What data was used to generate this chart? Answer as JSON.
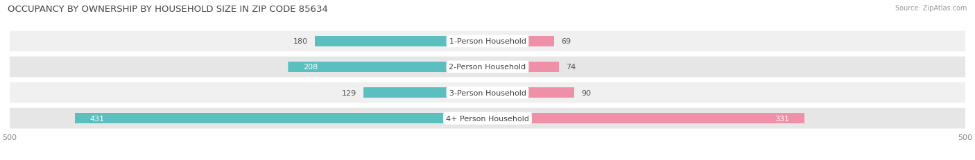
{
  "title": "OCCUPANCY BY OWNERSHIP BY HOUSEHOLD SIZE IN ZIP CODE 85634",
  "source": "Source: ZipAtlas.com",
  "categories": [
    "1-Person Household",
    "2-Person Household",
    "3-Person Household",
    "4+ Person Household"
  ],
  "owner_values": [
    180,
    208,
    129,
    431
  ],
  "renter_values": [
    69,
    74,
    90,
    331
  ],
  "owner_color": "#5bbfc0",
  "renter_color": "#f090a8",
  "row_bg_colors": [
    "#f0f0f0",
    "#e6e6e6",
    "#f0f0f0",
    "#e6e6e6"
  ],
  "x_max": 500,
  "title_fontsize": 9.5,
  "label_fontsize": 8,
  "tick_fontsize": 8,
  "source_fontsize": 7,
  "val_label_threshold": 200
}
